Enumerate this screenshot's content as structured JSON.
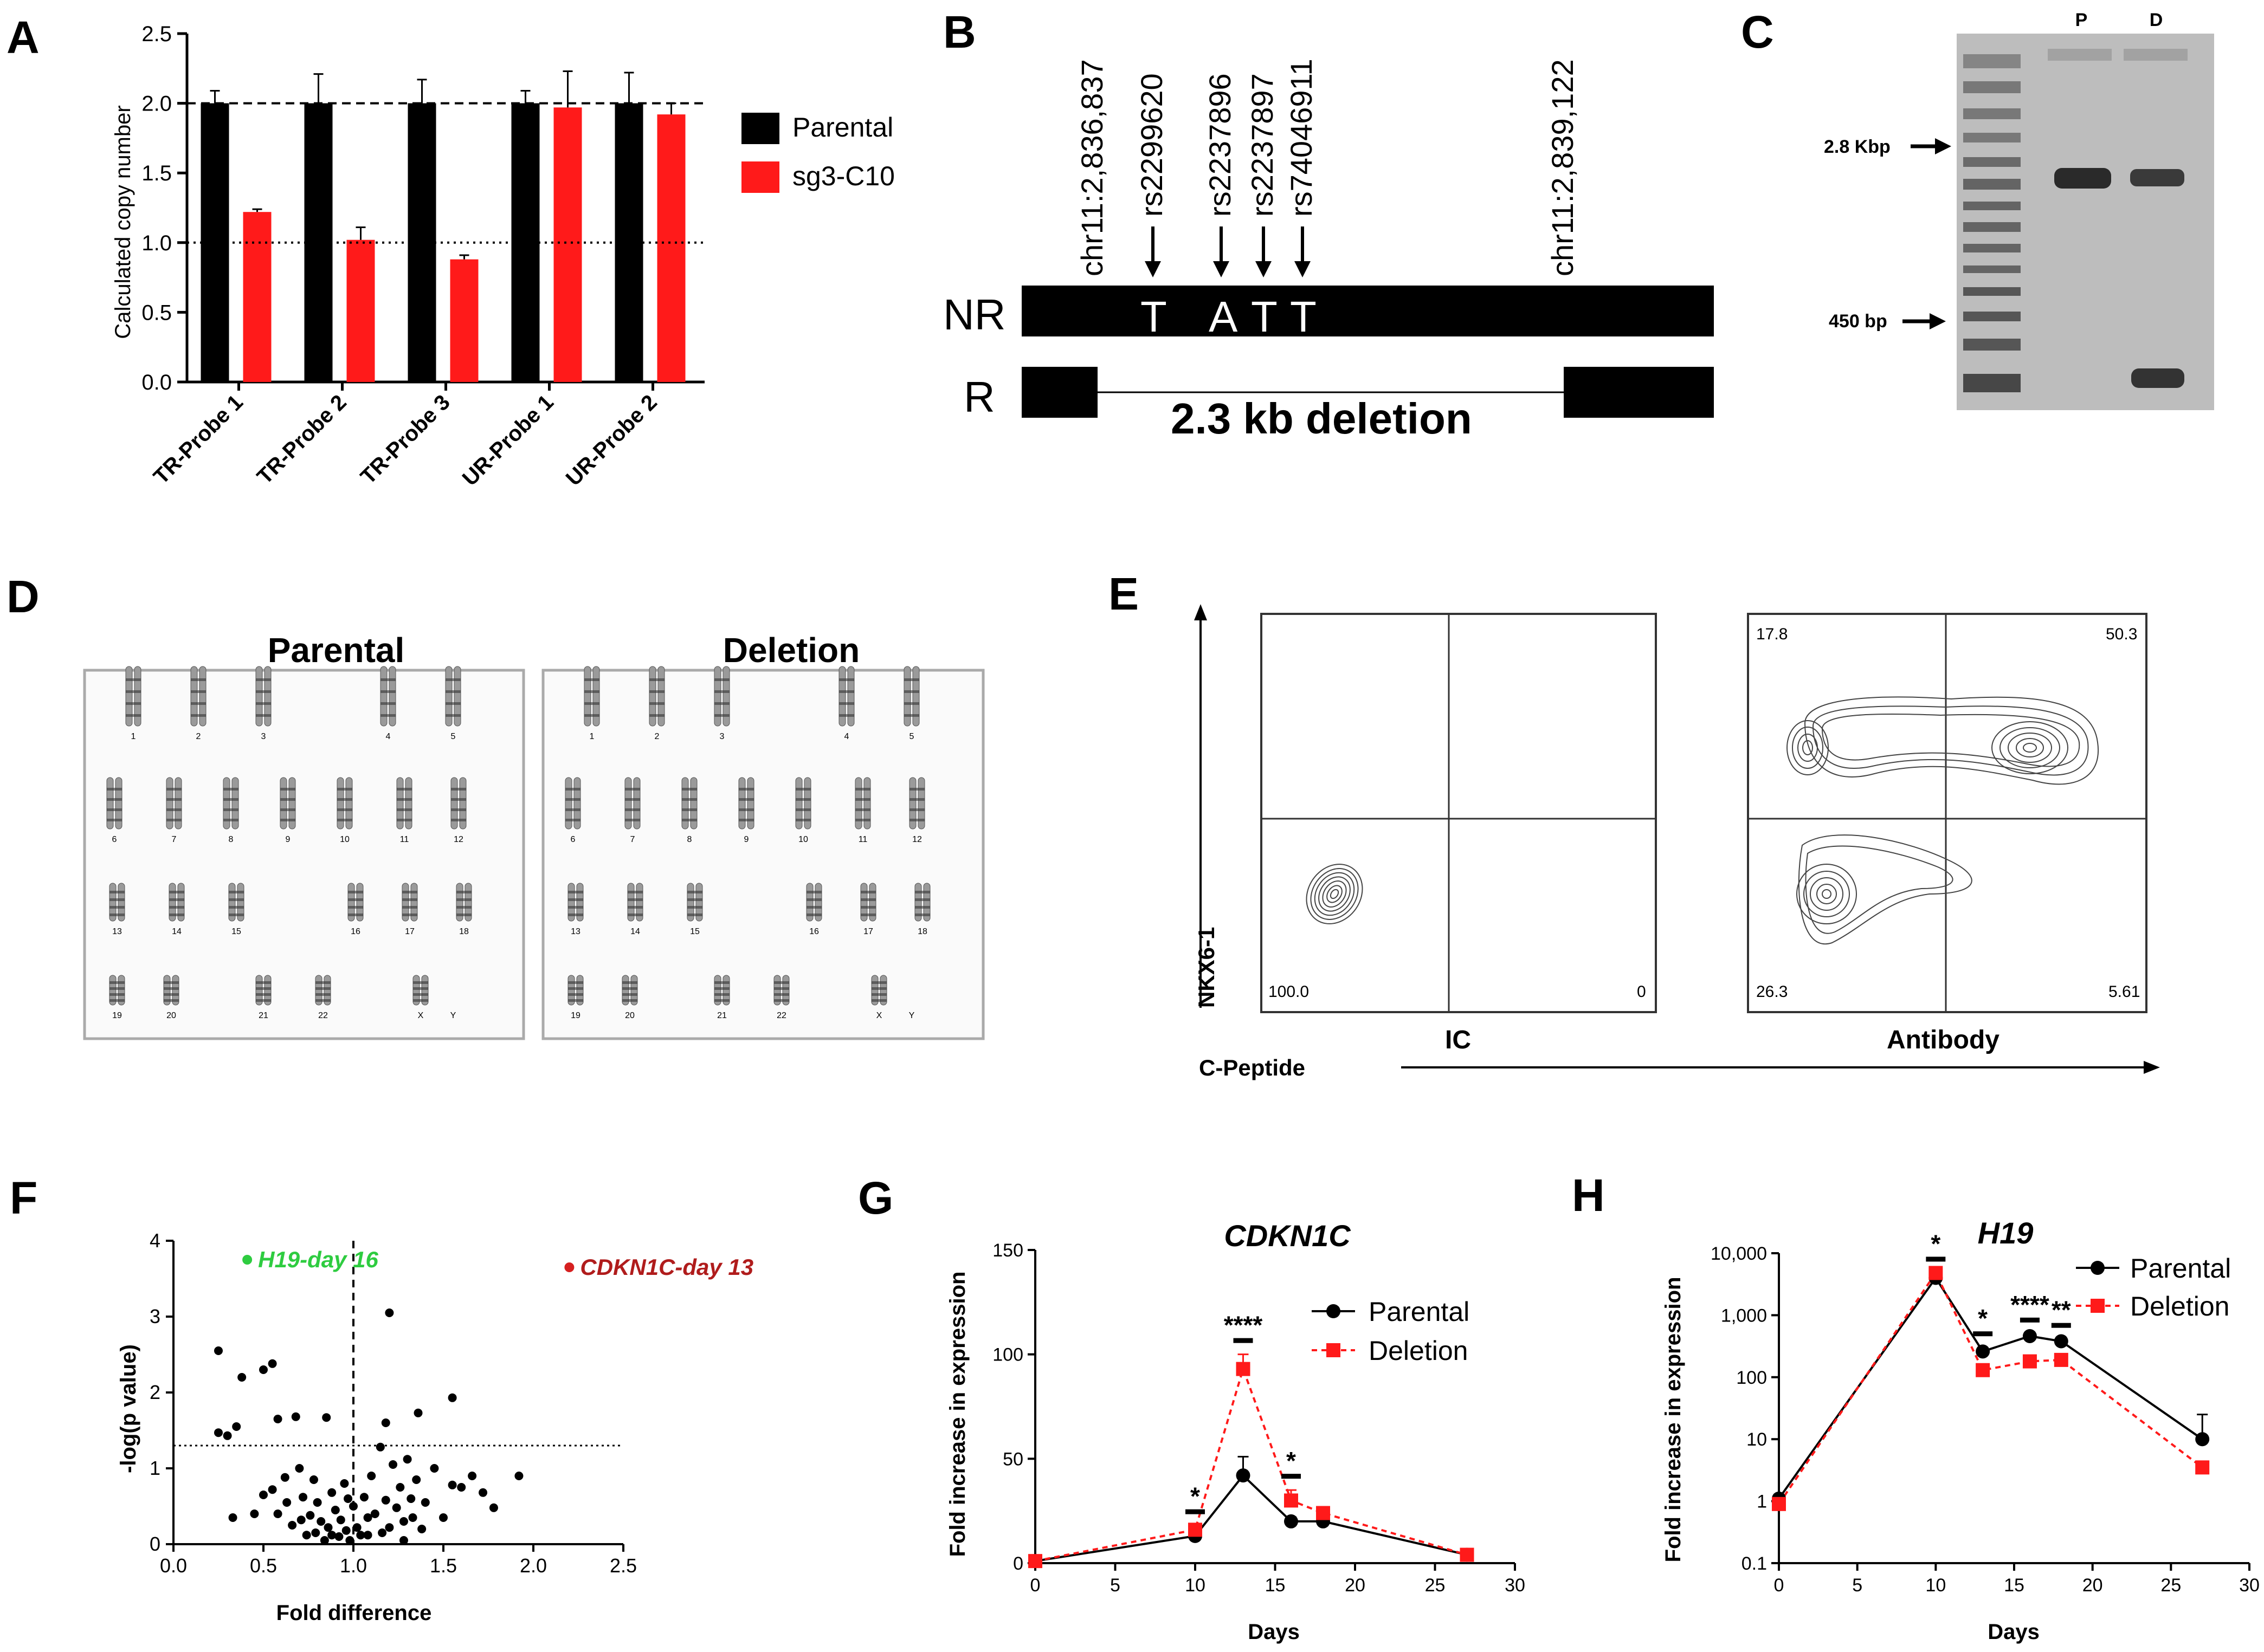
{
  "panel_labels": {
    "A": "A",
    "B": "B",
    "C": "C",
    "D": "D",
    "E": "E",
    "F": "F",
    "G": "G",
    "H": "H"
  },
  "colors": {
    "parental": "#000000",
    "sg3": "#ff1a1a",
    "deletion": "#ff1a1a",
    "label_red": "#b01c1c",
    "green": "#2ecc40",
    "gel_bg": "#bdbdbd"
  },
  "panelA": {
    "chart_data": {
      "type": "bar",
      "ylabel": "Calculated copy number",
      "ylim": [
        0,
        2.5
      ],
      "yticks": [
        "0.0",
        "0.5",
        "1.0",
        "1.5",
        "2.0",
        "2.5"
      ],
      "categories": [
        "TR-Probe 1",
        "TR-Probe 2",
        "TR-Probe 3",
        "UR-Probe 1",
        "UR-Probe 2"
      ],
      "series": [
        {
          "name": "Parental",
          "values": [
            2.0,
            2.0,
            2.0,
            2.0,
            2.0
          ],
          "err": [
            0.09,
            0.21,
            0.17,
            0.09,
            0.22
          ]
        },
        {
          "name": "sg3-C10",
          "values": [
            1.22,
            1.02,
            0.88,
            1.97,
            1.92
          ],
          "err": [
            0.02,
            0.09,
            0.03,
            0.26,
            0.08
          ]
        }
      ],
      "reference_lines": [
        2.0,
        1.0
      ]
    }
  },
  "panelB": {
    "coords": [
      "chr11:2,836,837",
      "chr11:2,839,122"
    ],
    "snps": [
      "rs2299620",
      "rs2237896",
      "rs2237897",
      "rs74046911"
    ],
    "alleles": [
      "T",
      "A",
      "T",
      "T"
    ],
    "rows": {
      "nr": "NR",
      "r": "R"
    },
    "deletion": "2.3 kb deletion"
  },
  "panelC": {
    "lanes": {
      "p": "P",
      "d": "D"
    },
    "markers": [
      "2.8 Kbp",
      "450 bp"
    ]
  },
  "panelD": {
    "titles": {
      "parental": "Parental",
      "deletion": "Deletion"
    },
    "chromosome_labels": [
      "1",
      "2",
      "3",
      "4",
      "5",
      "6",
      "7",
      "8",
      "9",
      "10",
      "11",
      "12",
      "13",
      "14",
      "15",
      "16",
      "17",
      "18",
      "19",
      "20",
      "21",
      "22",
      "X",
      "Y"
    ]
  },
  "panelE": {
    "y_axis": "NKX6-1",
    "x_axis": "C-Peptide",
    "plots": [
      {
        "name": "IC",
        "quadrants": {
          "ul": "",
          "ur": "",
          "ll": "100.0",
          "lr": "0"
        }
      },
      {
        "name": "Antibody",
        "quadrants": {
          "ul": "17.8",
          "ur": "50.3",
          "ll": "26.3",
          "lr": "5.61"
        }
      }
    ]
  },
  "panelF": {
    "chart_data": {
      "type": "scatter",
      "xlabel": "Fold difference",
      "ylabel": "-log(p value)",
      "xlim": [
        0,
        2.5
      ],
      "ylim": [
        0,
        4
      ],
      "xticks": [
        "0.0",
        "0.5",
        "1.0",
        "1.5",
        "2.0",
        "2.5"
      ],
      "yticks": [
        "0",
        "1",
        "2",
        "3",
        "4"
      ],
      "threshold_y": 1.3,
      "threshold_x": 1.0,
      "annotations": [
        {
          "text": "H19-day 16",
          "x": 0.41,
          "y": 3.75,
          "color": "green"
        },
        {
          "text": "CDKN1C-day 13",
          "x": 2.2,
          "y": 3.65,
          "color": "red"
        }
      ],
      "points": [
        [
          0.25,
          2.55
        ],
        [
          0.5,
          2.3
        ],
        [
          0.55,
          2.38
        ],
        [
          0.38,
          2.2
        ],
        [
          1.2,
          3.05
        ],
        [
          0.25,
          1.47
        ],
        [
          0.3,
          1.43
        ],
        [
          0.35,
          1.55
        ],
        [
          0.58,
          1.65
        ],
        [
          0.68,
          1.68
        ],
        [
          0.85,
          1.67
        ],
        [
          1.55,
          1.93
        ],
        [
          1.36,
          1.73
        ],
        [
          1.18,
          1.6
        ],
        [
          0.33,
          0.35
        ],
        [
          0.45,
          0.4
        ],
        [
          0.5,
          0.65
        ],
        [
          0.55,
          0.72
        ],
        [
          0.58,
          0.4
        ],
        [
          0.62,
          0.88
        ],
        [
          0.63,
          0.55
        ],
        [
          0.66,
          0.25
        ],
        [
          0.7,
          1.0
        ],
        [
          0.72,
          0.62
        ],
        [
          0.74,
          0.12
        ],
        [
          0.76,
          0.38
        ],
        [
          0.78,
          0.85
        ],
        [
          0.8,
          0.55
        ],
        [
          0.82,
          0.3
        ],
        [
          0.84,
          0.05
        ],
        [
          0.86,
          0.22
        ],
        [
          0.88,
          0.68
        ],
        [
          0.9,
          0.45
        ],
        [
          0.92,
          0.1
        ],
        [
          0.93,
          0.32
        ],
        [
          0.95,
          0.8
        ],
        [
          0.96,
          0.18
        ],
        [
          0.98,
          0.05
        ],
        [
          1.0,
          0.5
        ],
        [
          1.02,
          0.22
        ],
        [
          1.04,
          0.12
        ],
        [
          1.06,
          0.62
        ],
        [
          1.08,
          0.35
        ],
        [
          1.1,
          0.9
        ],
        [
          1.12,
          0.4
        ],
        [
          1.15,
          1.28
        ],
        [
          1.18,
          0.58
        ],
        [
          1.2,
          0.22
        ],
        [
          1.22,
          1.05
        ],
        [
          1.24,
          0.48
        ],
        [
          1.26,
          0.75
        ],
        [
          1.28,
          0.3
        ],
        [
          1.3,
          1.12
        ],
        [
          1.32,
          0.6
        ],
        [
          1.35,
          0.85
        ],
        [
          1.38,
          0.2
        ],
        [
          1.4,
          0.55
        ],
        [
          1.45,
          1.0
        ],
        [
          1.5,
          0.35
        ],
        [
          1.55,
          0.78
        ],
        [
          1.6,
          0.75
        ],
        [
          1.66,
          0.9
        ],
        [
          1.72,
          0.68
        ],
        [
          1.78,
          0.48
        ],
        [
          1.92,
          0.9
        ],
        [
          1.08,
          0.12
        ],
        [
          0.97,
          0.6
        ],
        [
          0.88,
          0.12
        ],
        [
          0.79,
          0.15
        ],
        [
          0.71,
          0.32
        ],
        [
          1.16,
          0.15
        ],
        [
          1.28,
          0.05
        ],
        [
          1.33,
          0.35
        ]
      ]
    }
  },
  "panelG": {
    "chart_data": {
      "type": "line",
      "title": "CDKN1C",
      "xlabel": "Days",
      "ylabel": "Fold increase in expression",
      "xlim": [
        0,
        30
      ],
      "ylim": [
        0,
        150
      ],
      "xticks": [
        "0",
        "5",
        "10",
        "15",
        "20",
        "25",
        "30"
      ],
      "yticks": [
        "0",
        "50",
        "100",
        "150"
      ],
      "x": [
        0,
        10,
        13,
        16,
        18,
        27
      ],
      "series": [
        {
          "name": "Parental",
          "values": [
            1,
            13,
            42,
            20,
            20,
            4
          ],
          "err": [
            0,
            1,
            9,
            2,
            2,
            1
          ]
        },
        {
          "name": "Deletion",
          "values": [
            1,
            16,
            93,
            30,
            24,
            4
          ],
          "err": [
            0,
            2,
            7,
            5,
            3,
            1
          ]
        }
      ],
      "significance": [
        {
          "x": 10,
          "label": "*"
        },
        {
          "x": 13,
          "label": "****"
        },
        {
          "x": 16,
          "label": "*"
        }
      ]
    }
  },
  "panelH": {
    "chart_data": {
      "type": "line",
      "title": "H19",
      "xlabel": "Days",
      "ylabel": "Fold increase in expression",
      "xlim": [
        0,
        30
      ],
      "ylim": [
        0.1,
        10000
      ],
      "yscale": "log",
      "xticks": [
        "0",
        "5",
        "10",
        "15",
        "20",
        "25",
        "30"
      ],
      "yticks": [
        "0.1",
        "1",
        "10",
        "100",
        "1,000",
        "10,000"
      ],
      "x": [
        0,
        10,
        13,
        16,
        18,
        27
      ],
      "series": [
        {
          "name": "Parental",
          "values": [
            1.1,
            4000,
            260,
            460,
            380,
            10
          ],
          "err": [
            0,
            0,
            40,
            40,
            30,
            15
          ]
        },
        {
          "name": "Deletion",
          "values": [
            0.9,
            4800,
            130,
            180,
            190,
            3.5
          ],
          "err": [
            0,
            0,
            25,
            20,
            20,
            0
          ]
        }
      ],
      "significance": [
        {
          "x": 10,
          "label": "*"
        },
        {
          "x": 13,
          "label": "*"
        },
        {
          "x": 16,
          "label": "****"
        },
        {
          "x": 18,
          "label": "**"
        }
      ]
    }
  }
}
